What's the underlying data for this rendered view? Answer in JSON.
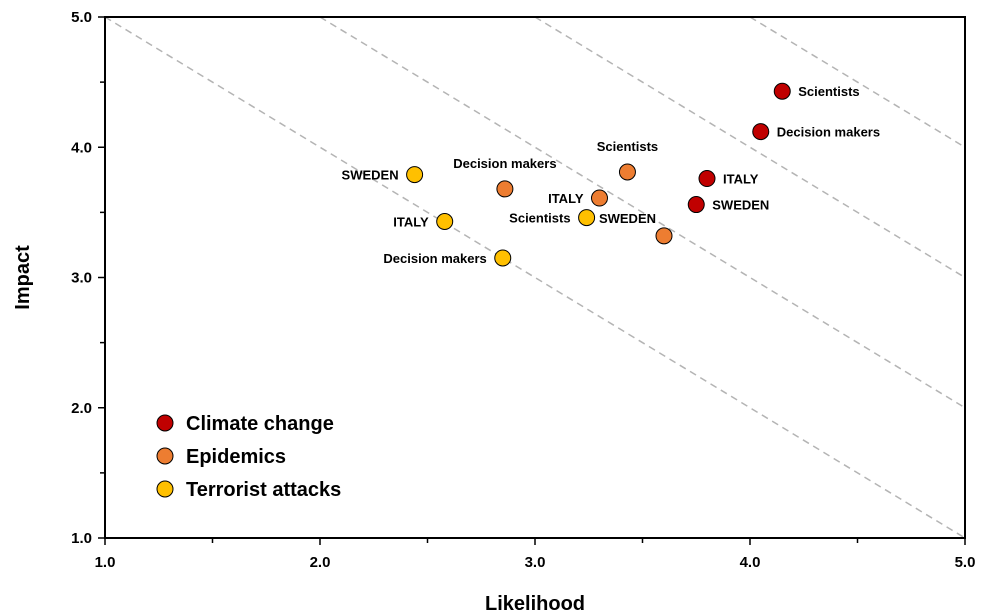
{
  "chart_data": {
    "type": "scatter",
    "xlabel": "Likelihood",
    "ylabel": "Impact",
    "xlim": [
      1.0,
      5.0
    ],
    "ylim": [
      1.0,
      5.0
    ],
    "xticks": [
      "1.0",
      "2.0",
      "3.0",
      "4.0",
      "5.0"
    ],
    "yticks": [
      "1.0",
      "2.0",
      "3.0",
      "4.0",
      "5.0"
    ],
    "grid": false,
    "iso_lines": [
      6,
      7,
      8,
      9,
      10
    ],
    "legend_position": "bottom-left",
    "series": [
      {
        "name": "Climate change",
        "color": "#c00000",
        "points": [
          {
            "x": 4.15,
            "y": 4.43,
            "label": "Scientists"
          },
          {
            "x": 4.05,
            "y": 4.12,
            "label": "Decision makers"
          },
          {
            "x": 3.8,
            "y": 3.76,
            "label": "ITALY"
          },
          {
            "x": 3.75,
            "y": 3.56,
            "label": "SWEDEN"
          }
        ]
      },
      {
        "name": "Epidemics",
        "color": "#ed7d31",
        "points": [
          {
            "x": 3.43,
            "y": 3.81,
            "label": "Scientists"
          },
          {
            "x": 3.3,
            "y": 3.61,
            "label": "ITALY"
          },
          {
            "x": 2.86,
            "y": 3.68,
            "label": "Decision makers"
          },
          {
            "x": 3.6,
            "y": 3.32,
            "label": "SWEDEN"
          }
        ]
      },
      {
        "name": "Terrorist attacks",
        "color": "#ffc000",
        "points": [
          {
            "x": 2.44,
            "y": 3.79,
            "label": "SWEDEN"
          },
          {
            "x": 2.58,
            "y": 3.43,
            "label": "ITALY"
          },
          {
            "x": 3.24,
            "y": 3.46,
            "label": "Scientists"
          },
          {
            "x": 2.85,
            "y": 3.15,
            "label": "Decision makers"
          }
        ]
      }
    ]
  }
}
